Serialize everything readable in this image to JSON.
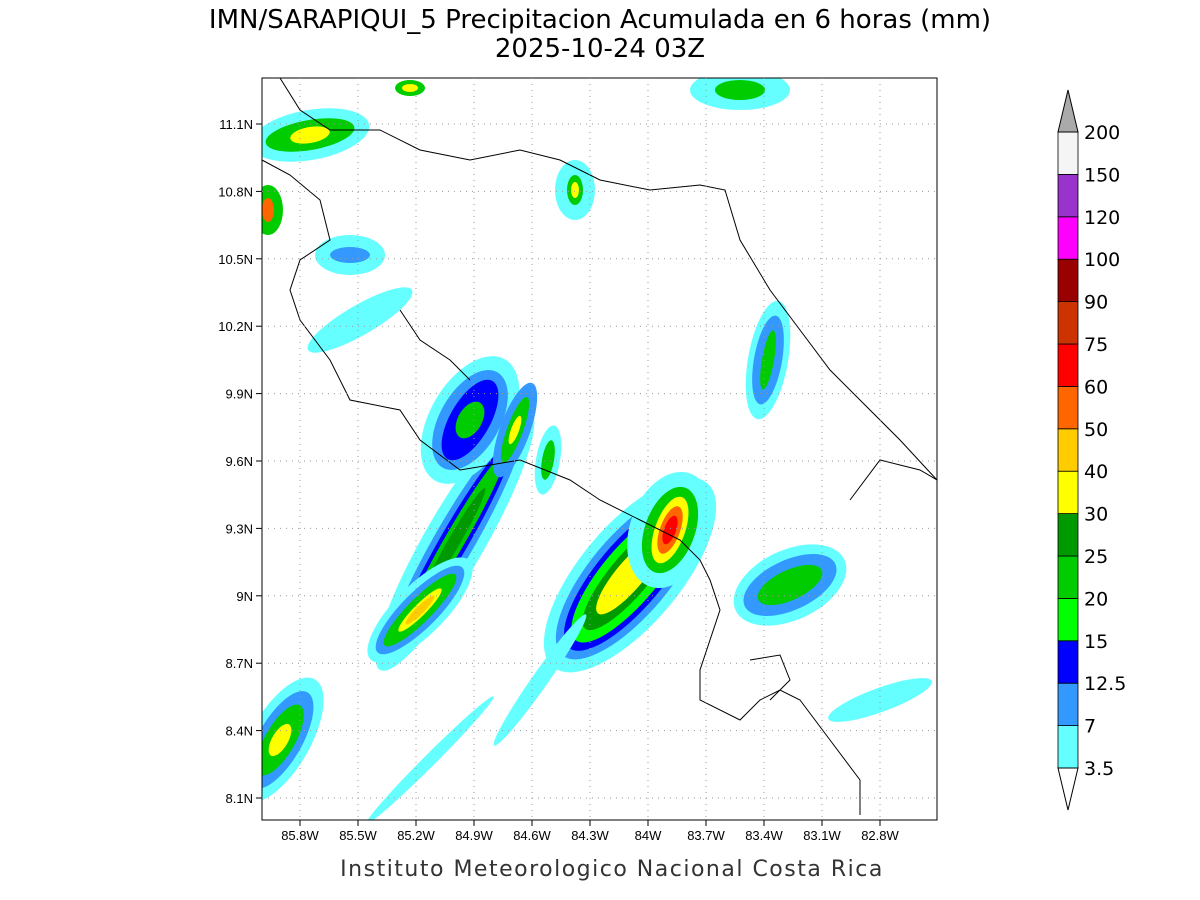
{
  "header": {
    "title": "IMN/SARAPIQUI_5 Precipitacion Acumulada en 6 horas (mm)",
    "subtitle": "2025-10-24 03Z"
  },
  "map": {
    "lat_ticks": [
      "11.1N",
      "10.8N",
      "10.5N",
      "10.2N",
      "9.9N",
      "9.6N",
      "9.3N",
      "9N",
      "8.7N",
      "8.4N",
      "8.1N"
    ],
    "lon_ticks": [
      "85.8W",
      "85.5W",
      "85.2W",
      "84.9W",
      "84.6W",
      "84.3W",
      "84W",
      "83.7W",
      "83.4W",
      "83.1W",
      "82.8W"
    ]
  },
  "colorbar": {
    "levels": [
      3.5,
      7,
      12.5,
      15,
      20,
      25,
      30,
      40,
      50,
      60,
      75,
      90,
      100,
      120,
      150,
      200
    ],
    "colors": [
      "#66ffff",
      "#3399ff",
      "#0000ff",
      "#00ff00",
      "#00cc00",
      "#009900",
      "#ffff00",
      "#ffcc00",
      "#ff6600",
      "#ff0000",
      "#cc3300",
      "#990000",
      "#ff00ff",
      "#9933cc",
      "#f5f5f5"
    ],
    "under_color": "#ffffff",
    "over_color": "#aaaaaa"
  },
  "footer": "Instituto Meteorologico Nacional Costa Rica"
}
